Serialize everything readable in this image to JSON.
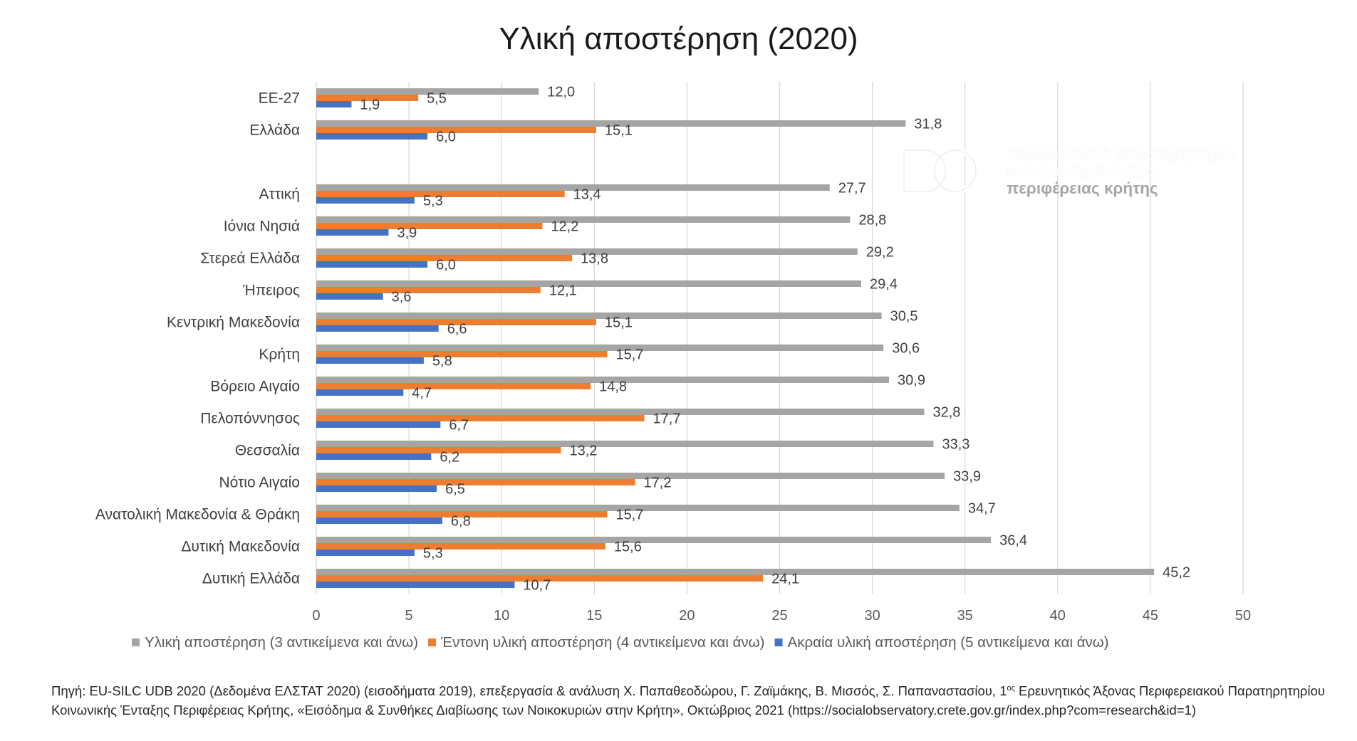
{
  "title": "Υλική αποστέρηση (2020)",
  "chart_data": {
    "type": "bar",
    "orientation": "horizontal",
    "title": "Υλική αποστέρηση (2020)",
    "categories": [
      "ΕΕ-27",
      "Ελλάδα",
      "",
      "Αττική",
      "Ιόνια Νησιά",
      "Στερεά Ελλάδα",
      "Ήπειρος",
      "Κεντρική Μακεδονία",
      "Κρήτη",
      "Βόρειο Αιγαίο",
      "Πελοπόννησος",
      "Θεσσαλία",
      "Νότιο Αιγαίο",
      "Ανατολική Μακεδονία & Θράκη",
      "Δυτική Μακεδονία",
      "Δυτική Ελλάδα"
    ],
    "series": [
      {
        "name": "Υλική αποστέρηση (3 αντικείμενα και άνω)",
        "color": "#a5a5a5",
        "values": [
          12.0,
          31.8,
          null,
          27.7,
          28.8,
          29.2,
          29.4,
          30.5,
          30.6,
          30.9,
          32.8,
          33.3,
          33.9,
          34.7,
          36.4,
          45.2
        ],
        "labels": [
          "12,0",
          "31,8",
          "",
          "27,7",
          "28,8",
          "29,2",
          "29,4",
          "30,5",
          "30,6",
          "30,9",
          "32,8",
          "33,3",
          "33,9",
          "34,7",
          "36,4",
          "45,2"
        ]
      },
      {
        "name": "Έντονη υλική αποστέρηση (4 αντικείμενα και άνω)",
        "color": "#ed7d31",
        "values": [
          5.5,
          15.1,
          null,
          13.4,
          12.2,
          13.8,
          12.1,
          15.1,
          15.7,
          14.8,
          17.7,
          13.2,
          17.2,
          15.7,
          15.6,
          24.1
        ],
        "labels": [
          "5,5",
          "15,1",
          "",
          "13,4",
          "12,2",
          "13,8",
          "12,1",
          "15,1",
          "15,7",
          "14,8",
          "17,7",
          "13,2",
          "17,2",
          "15,7",
          "15,6",
          "24,1"
        ]
      },
      {
        "name": "Ακραία υλική αποστέρηση (5 αντικείμενα και άνω)",
        "color": "#4472c4",
        "values": [
          1.9,
          6.0,
          null,
          5.3,
          3.9,
          6.0,
          3.6,
          6.6,
          5.8,
          4.7,
          6.7,
          6.2,
          6.5,
          6.8,
          5.3,
          10.7
        ],
        "labels": [
          "1,9",
          "6,0",
          "",
          "5,3",
          "3,9",
          "6,0",
          "3,6",
          "6,6",
          "5,8",
          "4,7",
          "6,7",
          "6,2",
          "6,5",
          "6,8",
          "5,3",
          "10,7"
        ]
      }
    ],
    "xlim": [
      0,
      50
    ],
    "x_ticks": [
      "0",
      "5",
      "10",
      "15",
      "20",
      "25",
      "30",
      "35",
      "40",
      "45",
      "50"
    ],
    "grid": true,
    "legend_position": "bottom"
  },
  "logo": {
    "line1": "περιφερειακό παρατηρητήριο",
    "line2": "κοινωνικής ένταξης",
    "line3": "περιφέρειας κρήτης"
  },
  "source": {
    "line1_a": "Πηγή: EU-SILC UDB 2020 (Δεδομένα ΕΛΣΤΑΤ 2020) (εισοδήματα 2019), επεξεργασία & ανάλυση Χ. Παπαθεοδώρου, Γ. Ζαϊμάκης, Β. Μισσός, Σ. Παπαναστασίου, 1",
    "line1_sup": "ος",
    "line1_b": " Ερευνητικός Άξονας Περιφερειακού Παρατηρητηρίου",
    "line2": "Κοινωνικής Ένταξης Περιφέρειας Κρήτης, «Εισόδημα & Συνθήκες Διαβίωσης των Νοικοκυριών στην Κρήτη», Οκτώβριος 2021 (https://socialobservatory.crete.gov.gr/index.php?com=research&id=1)"
  }
}
